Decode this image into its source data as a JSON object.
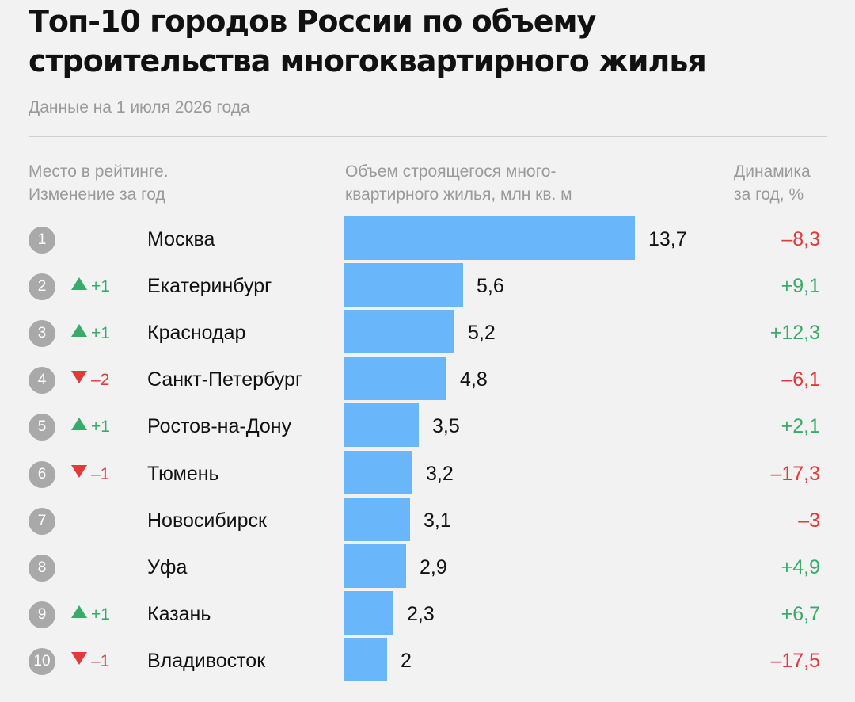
{
  "title": "Топ-10 городов России по объему строительства многоквартирного жилья",
  "subtitle": "Данные на 1 июля 2026 года",
  "columns": {
    "rank": [
      "Место в рейтинге.",
      "Изменение за год"
    ],
    "volume": [
      "Объем строящегося много-",
      "квартирного жилья, млн кв. м"
    ],
    "dynamics": [
      "Динамика",
      "за год, %"
    ]
  },
  "colors": {
    "bar": "#69b6fb",
    "positive": "#3aaa6a",
    "negative": "#e03a3a",
    "badge": "#a9a9a9"
  },
  "chart_data": {
    "type": "bar",
    "orientation": "horizontal",
    "title": "Топ-10 городов России по объему строительства многоквартирного жилья",
    "subtitle": "Данные на 1 июля 2026 года",
    "categories": [
      "Москва",
      "Екатеринбург",
      "Краснодар",
      "Санкт-Петербург",
      "Ростов-на-Дону",
      "Тюмень",
      "Новосибирск",
      "Уфа",
      "Казань",
      "Владивосток"
    ],
    "values": [
      13.7,
      5.6,
      5.2,
      4.8,
      3.5,
      3.2,
      3.1,
      2.9,
      2.3,
      2.0
    ],
    "xlim": [
      0,
      13.7
    ],
    "grid": false,
    "rows": [
      {
        "rank": "1",
        "change": "",
        "dir": "none",
        "city": "Москва",
        "value": 13.7,
        "value_label": "13,7",
        "dynamics": "–8,3",
        "dyn_sign": "neg"
      },
      {
        "rank": "2",
        "change": "+1",
        "dir": "up",
        "city": "Екатеринбург",
        "value": 5.6,
        "value_label": "5,6",
        "dynamics": "+9,1",
        "dyn_sign": "pos"
      },
      {
        "rank": "3",
        "change": "+1",
        "dir": "up",
        "city": "Краснодар",
        "value": 5.2,
        "value_label": "5,2",
        "dynamics": "+12,3",
        "dyn_sign": "pos"
      },
      {
        "rank": "4",
        "change": "–2",
        "dir": "down",
        "city": "Санкт-Петербург",
        "value": 4.8,
        "value_label": "4,8",
        "dynamics": "–6,1",
        "dyn_sign": "neg"
      },
      {
        "rank": "5",
        "change": "+1",
        "dir": "up",
        "city": "Ростов-на-Дону",
        "value": 3.5,
        "value_label": "3,5",
        "dynamics": "+2,1",
        "dyn_sign": "pos"
      },
      {
        "rank": "6",
        "change": "–1",
        "dir": "down",
        "city": "Тюмень",
        "value": 3.2,
        "value_label": "3,2",
        "dynamics": "–17,3",
        "dyn_sign": "neg"
      },
      {
        "rank": "7",
        "change": "",
        "dir": "none",
        "city": "Новосибирск",
        "value": 3.1,
        "value_label": "3,1",
        "dynamics": "–3",
        "dyn_sign": "neg"
      },
      {
        "rank": "8",
        "change": "",
        "dir": "none",
        "city": "Уфа",
        "value": 2.9,
        "value_label": "2,9",
        "dynamics": "+4,9",
        "dyn_sign": "pos"
      },
      {
        "rank": "9",
        "change": "+1",
        "dir": "up",
        "city": "Казань",
        "value": 2.3,
        "value_label": "2,3",
        "dynamics": "+6,7",
        "dyn_sign": "pos"
      },
      {
        "rank": "10",
        "change": "–1",
        "dir": "down",
        "city": "Владивосток",
        "value": 2.0,
        "value_label": "2",
        "dynamics": "–17,5",
        "dyn_sign": "neg"
      }
    ]
  }
}
